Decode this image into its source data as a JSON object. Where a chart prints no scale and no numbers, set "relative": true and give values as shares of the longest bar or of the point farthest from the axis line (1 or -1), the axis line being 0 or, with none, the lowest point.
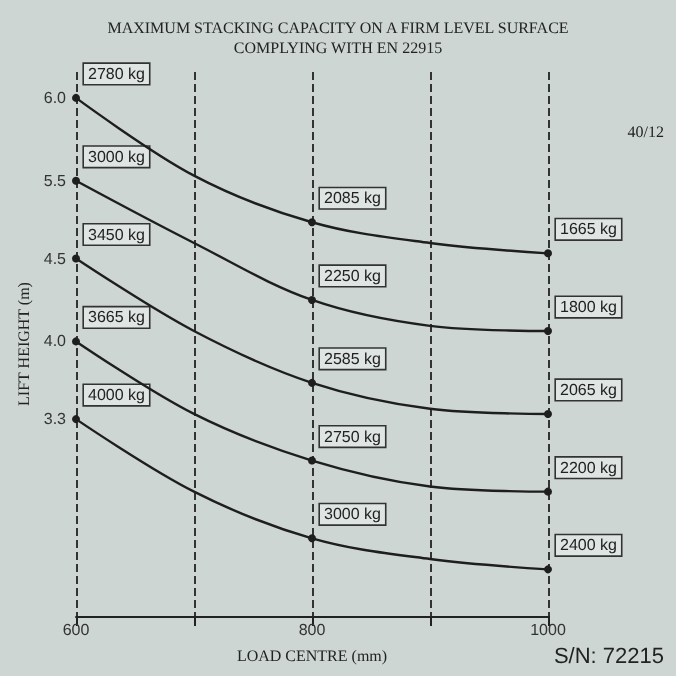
{
  "chart_data": {
    "type": "line",
    "title": "MAXIMUM STACKING CAPACITY ON A FIRM LEVEL SURFACE\nCOMPLYING WITH EN 22915",
    "xlabel": "LOAD CENTRE (mm)",
    "ylabel": "LIFT HEIGHT (m)",
    "relative": true,
    "x": [
      600,
      700,
      800,
      900,
      1000
    ],
    "series": [
      {
        "name": "6.0",
        "color": "#1e1e1e",
        "values": [
          1.0,
          0.85,
          0.76,
          0.72,
          0.7
        ]
      },
      {
        "name": "5.5",
        "color": "#1e1e1e",
        "values": [
          0.84,
          0.72,
          0.61,
          0.56,
          0.55
        ]
      },
      {
        "name": "4.5",
        "color": "#1e1e1e",
        "values": [
          0.69,
          0.55,
          0.45,
          0.4,
          0.39
        ]
      },
      {
        "name": "4.0",
        "color": "#1e1e1e",
        "values": [
          0.53,
          0.39,
          0.3,
          0.25,
          0.24
        ]
      },
      {
        "name": "3.3",
        "color": "#1e1e1e",
        "values": [
          0.38,
          0.24,
          0.15,
          0.11,
          0.09
        ]
      }
    ],
    "xlim": [
      600,
      1000
    ],
    "xticks": [
      600,
      {
        "value": 700,
        "label": null
      },
      800,
      {
        "value": 900,
        "label": null
      },
      1000
    ],
    "grid": "x",
    "marker": "circle",
    "line_style": "solid",
    "annotations": [
      "40/12",
      "S/N: 72215",
      {
        "text": "2780 kg",
        "x": 600,
        "y": 1.0
      },
      {
        "text": "2085 kg",
        "x": 800,
        "y": 0.76
      },
      {
        "text": "1665 kg",
        "x": 1000,
        "y": 0.7
      },
      {
        "text": "3000 kg",
        "x": 600,
        "y": 0.84
      },
      {
        "text": "2250 kg",
        "x": 800,
        "y": 0.61
      },
      {
        "text": "1800 kg",
        "x": 1000,
        "y": 0.55
      },
      {
        "text": "3450 kg",
        "x": 600,
        "y": 0.69
      },
      {
        "text": "2585 kg",
        "x": 800,
        "y": 0.45
      },
      {
        "text": "2065 kg",
        "x": 1000,
        "y": 0.39
      },
      {
        "text": "3665 kg",
        "x": 600,
        "y": 0.53
      },
      {
        "text": "2750 kg",
        "x": 800,
        "y": 0.3
      },
      {
        "text": "2200 kg",
        "x": 1000,
        "y": 0.24
      },
      {
        "text": "4000 kg",
        "x": 600,
        "y": 0.38
      },
      {
        "text": "3000 kg",
        "x": 800,
        "y": 0.15
      },
      {
        "text": "2400 kg",
        "x": 1000,
        "y": 0.09
      }
    ]
  }
}
